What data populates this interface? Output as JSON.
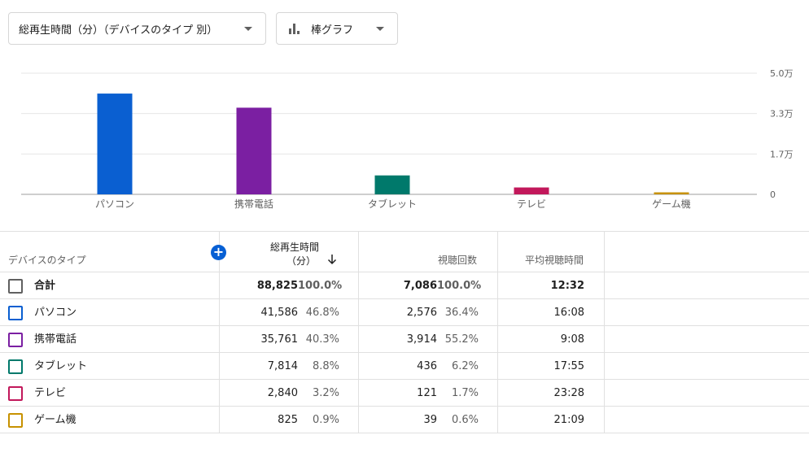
{
  "metric_dropdown": {
    "label": "総再生時間（分）（デバイスのタイプ 別）"
  },
  "chart_dropdown": {
    "label": "棒グラフ"
  },
  "chart_data": {
    "type": "bar",
    "categories": [
      "パソコン",
      "携帯電話",
      "タブレット",
      "テレビ",
      "ゲーム機"
    ],
    "values": [
      41586,
      35761,
      7814,
      2840,
      825
    ],
    "colors": [
      "#0a5fd1",
      "#7b1fa2",
      "#00796b",
      "#c2185b",
      "#c79100"
    ],
    "yticks": [
      {
        "value": 50000,
        "label": "5.0万"
      },
      {
        "value": 33333,
        "label": "3.3万"
      },
      {
        "value": 16667,
        "label": "1.7万"
      },
      {
        "value": 0,
        "label": "0"
      }
    ],
    "ylim": [
      0,
      50000
    ],
    "grid": true
  },
  "table": {
    "headers": {
      "device": "デバイスのタイプ",
      "watch_time_line1": "総再生時間",
      "watch_time_line2": "（分）",
      "views": "視聴回数",
      "avg": "平均視聴時間"
    },
    "rows": [
      {
        "name": "合計",
        "watch": "88,825",
        "watch_pct": "100.0%",
        "views": "7,086",
        "views_pct": "100.0%",
        "avg": "12:32",
        "color": "#606060"
      },
      {
        "name": "パソコン",
        "watch": "41,586",
        "watch_pct": "46.8%",
        "views": "2,576",
        "views_pct": "36.4%",
        "avg": "16:08",
        "color": "#0a5fd1"
      },
      {
        "name": "携帯電話",
        "watch": "35,761",
        "watch_pct": "40.3%",
        "views": "3,914",
        "views_pct": "55.2%",
        "avg": "9:08",
        "color": "#7b1fa2"
      },
      {
        "name": "タブレット",
        "watch": "7,814",
        "watch_pct": "8.8%",
        "views": "436",
        "views_pct": "6.2%",
        "avg": "17:55",
        "color": "#00796b"
      },
      {
        "name": "テレビ",
        "watch": "2,840",
        "watch_pct": "3.2%",
        "views": "121",
        "views_pct": "1.7%",
        "avg": "23:28",
        "color": "#c2185b"
      },
      {
        "name": "ゲーム機",
        "watch": "825",
        "watch_pct": "0.9%",
        "views": "39",
        "views_pct": "0.6%",
        "avg": "21:09",
        "color": "#c79100"
      }
    ]
  }
}
